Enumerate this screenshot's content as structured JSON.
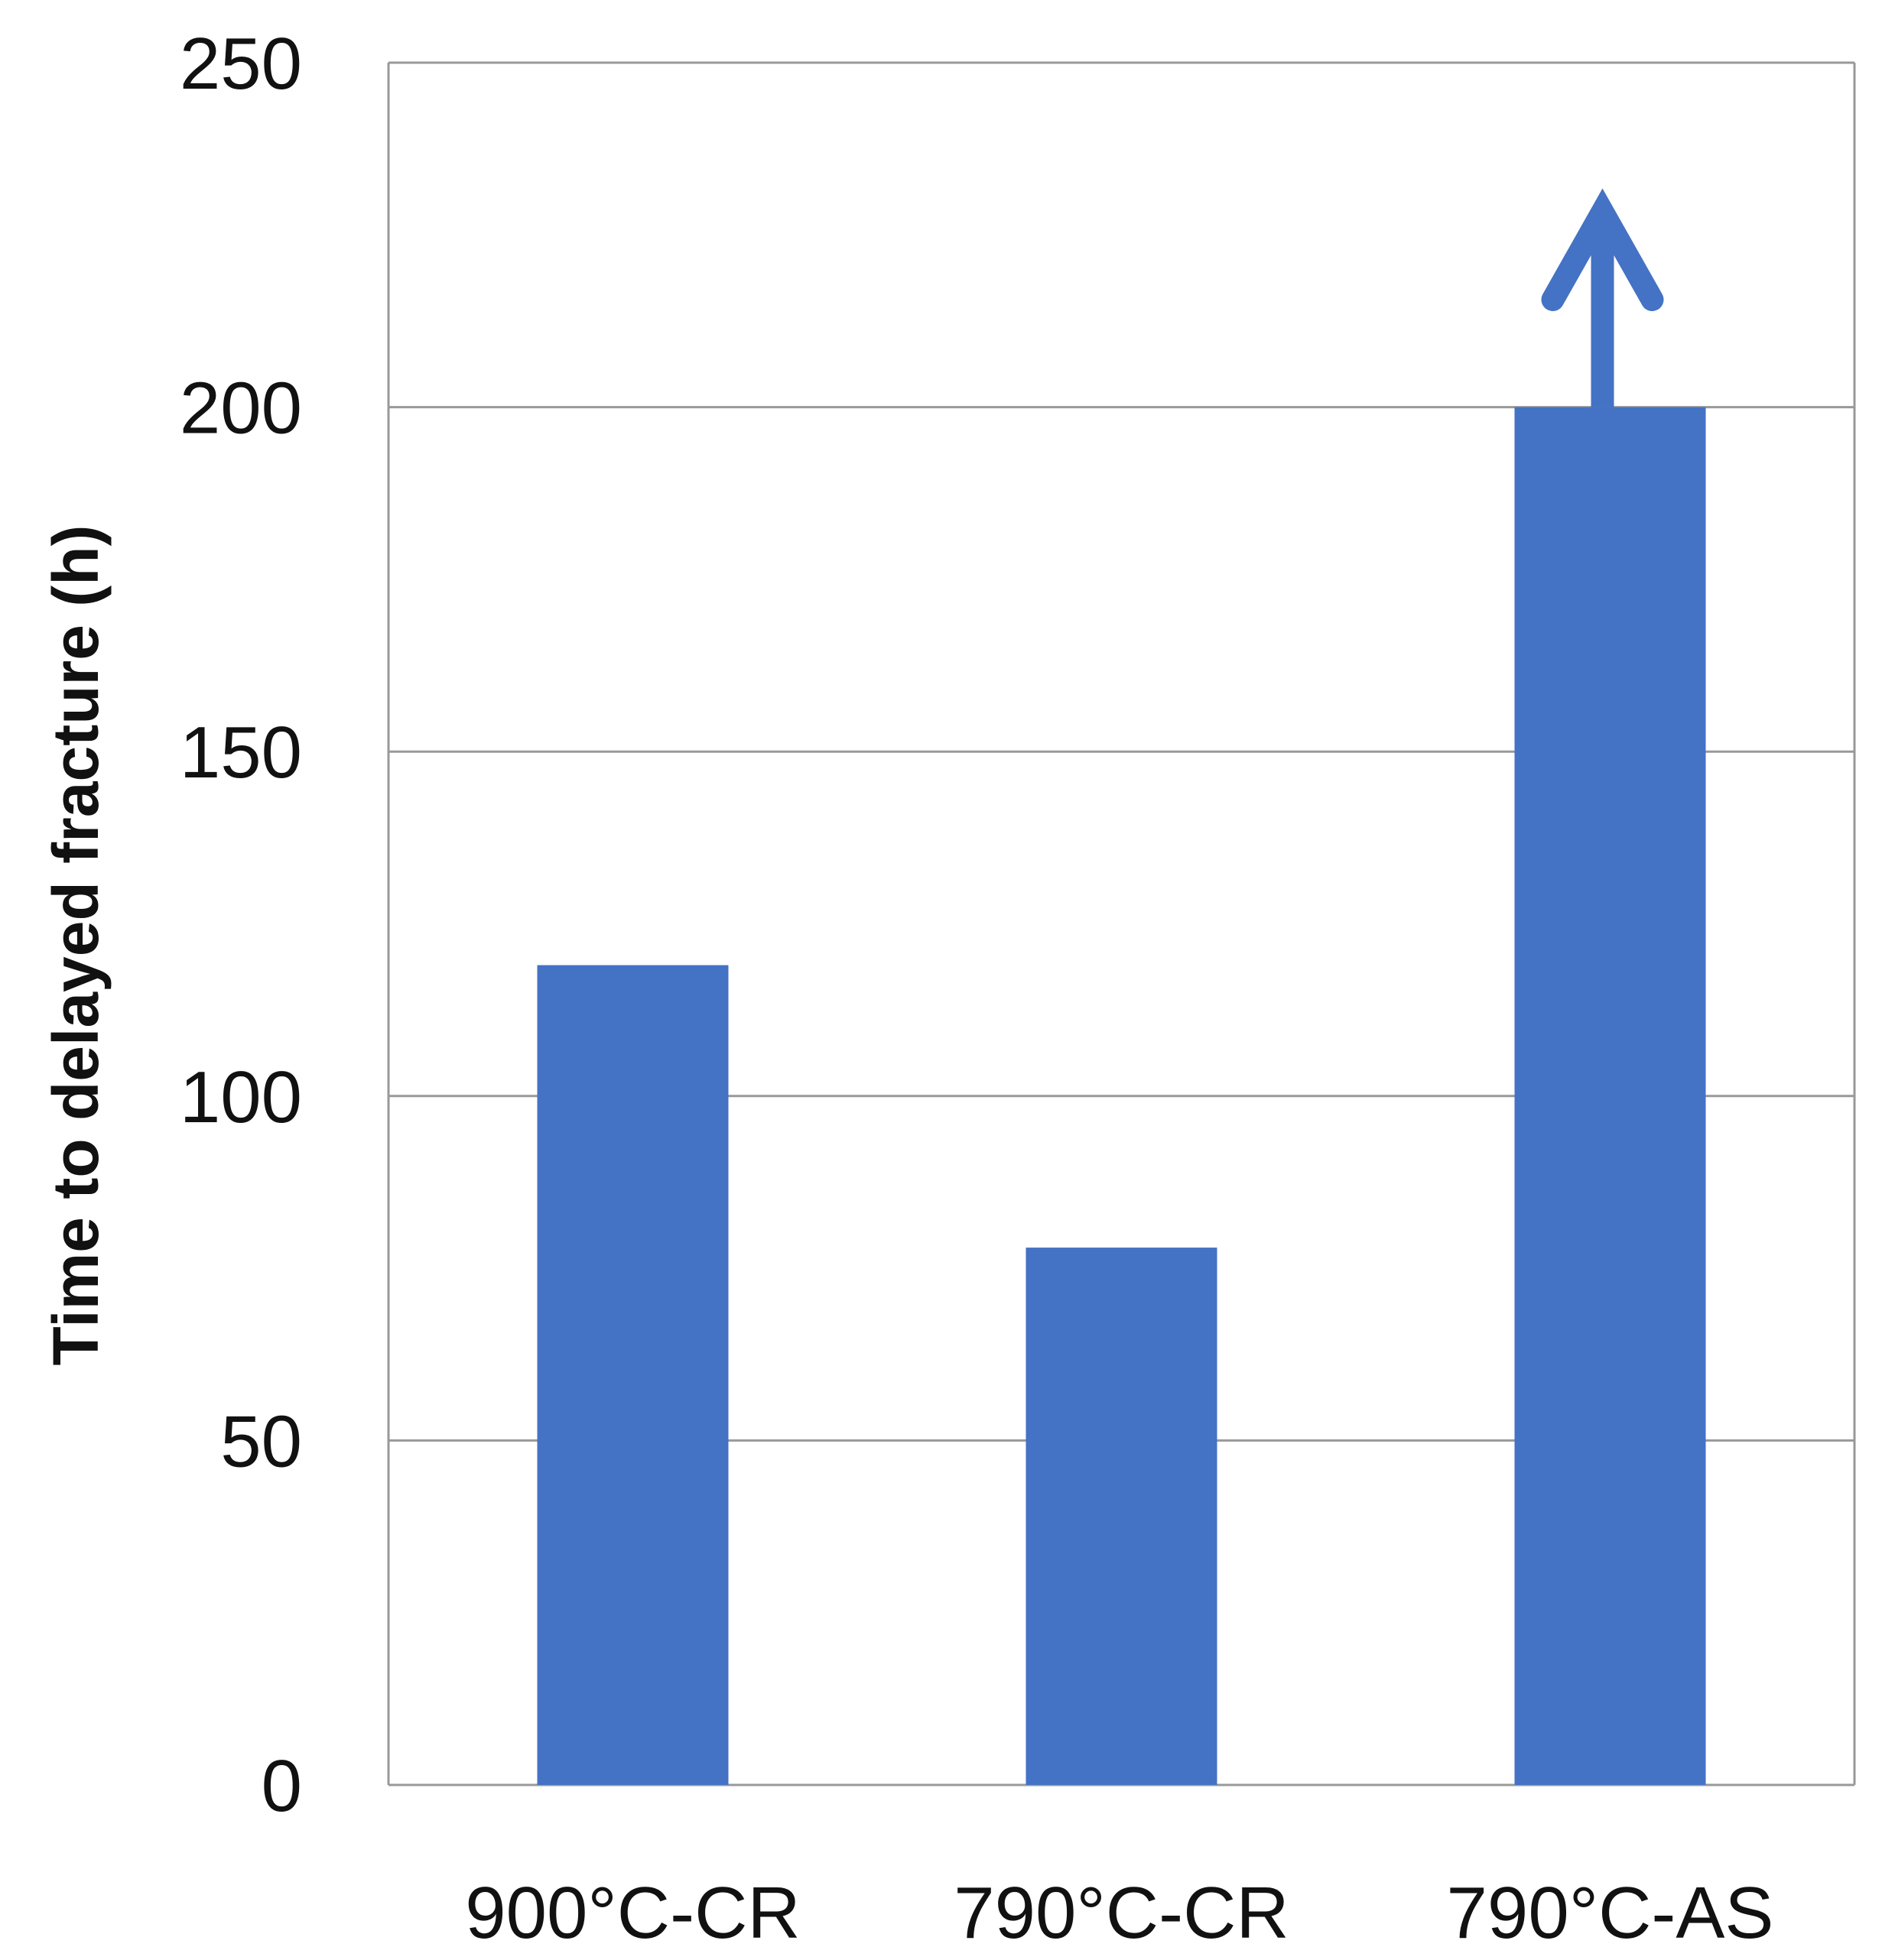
{
  "chart_data": {
    "type": "bar",
    "categories": [
      "900°C-CR",
      "790°C-CR",
      "790°C-AS"
    ],
    "values": [
      119,
      78,
      200
    ],
    "exceeds_marker": [
      false,
      false,
      true
    ],
    "ylabel": "Time to delayed fracture (h)",
    "xlabel": "",
    "title": "",
    "ylim": [
      0,
      250
    ],
    "yticks": [
      0,
      50,
      100,
      150,
      200,
      250
    ],
    "grid": true,
    "bar_color": "#4472C4",
    "gridline_color": "#999999",
    "frame_color": "#999999"
  }
}
